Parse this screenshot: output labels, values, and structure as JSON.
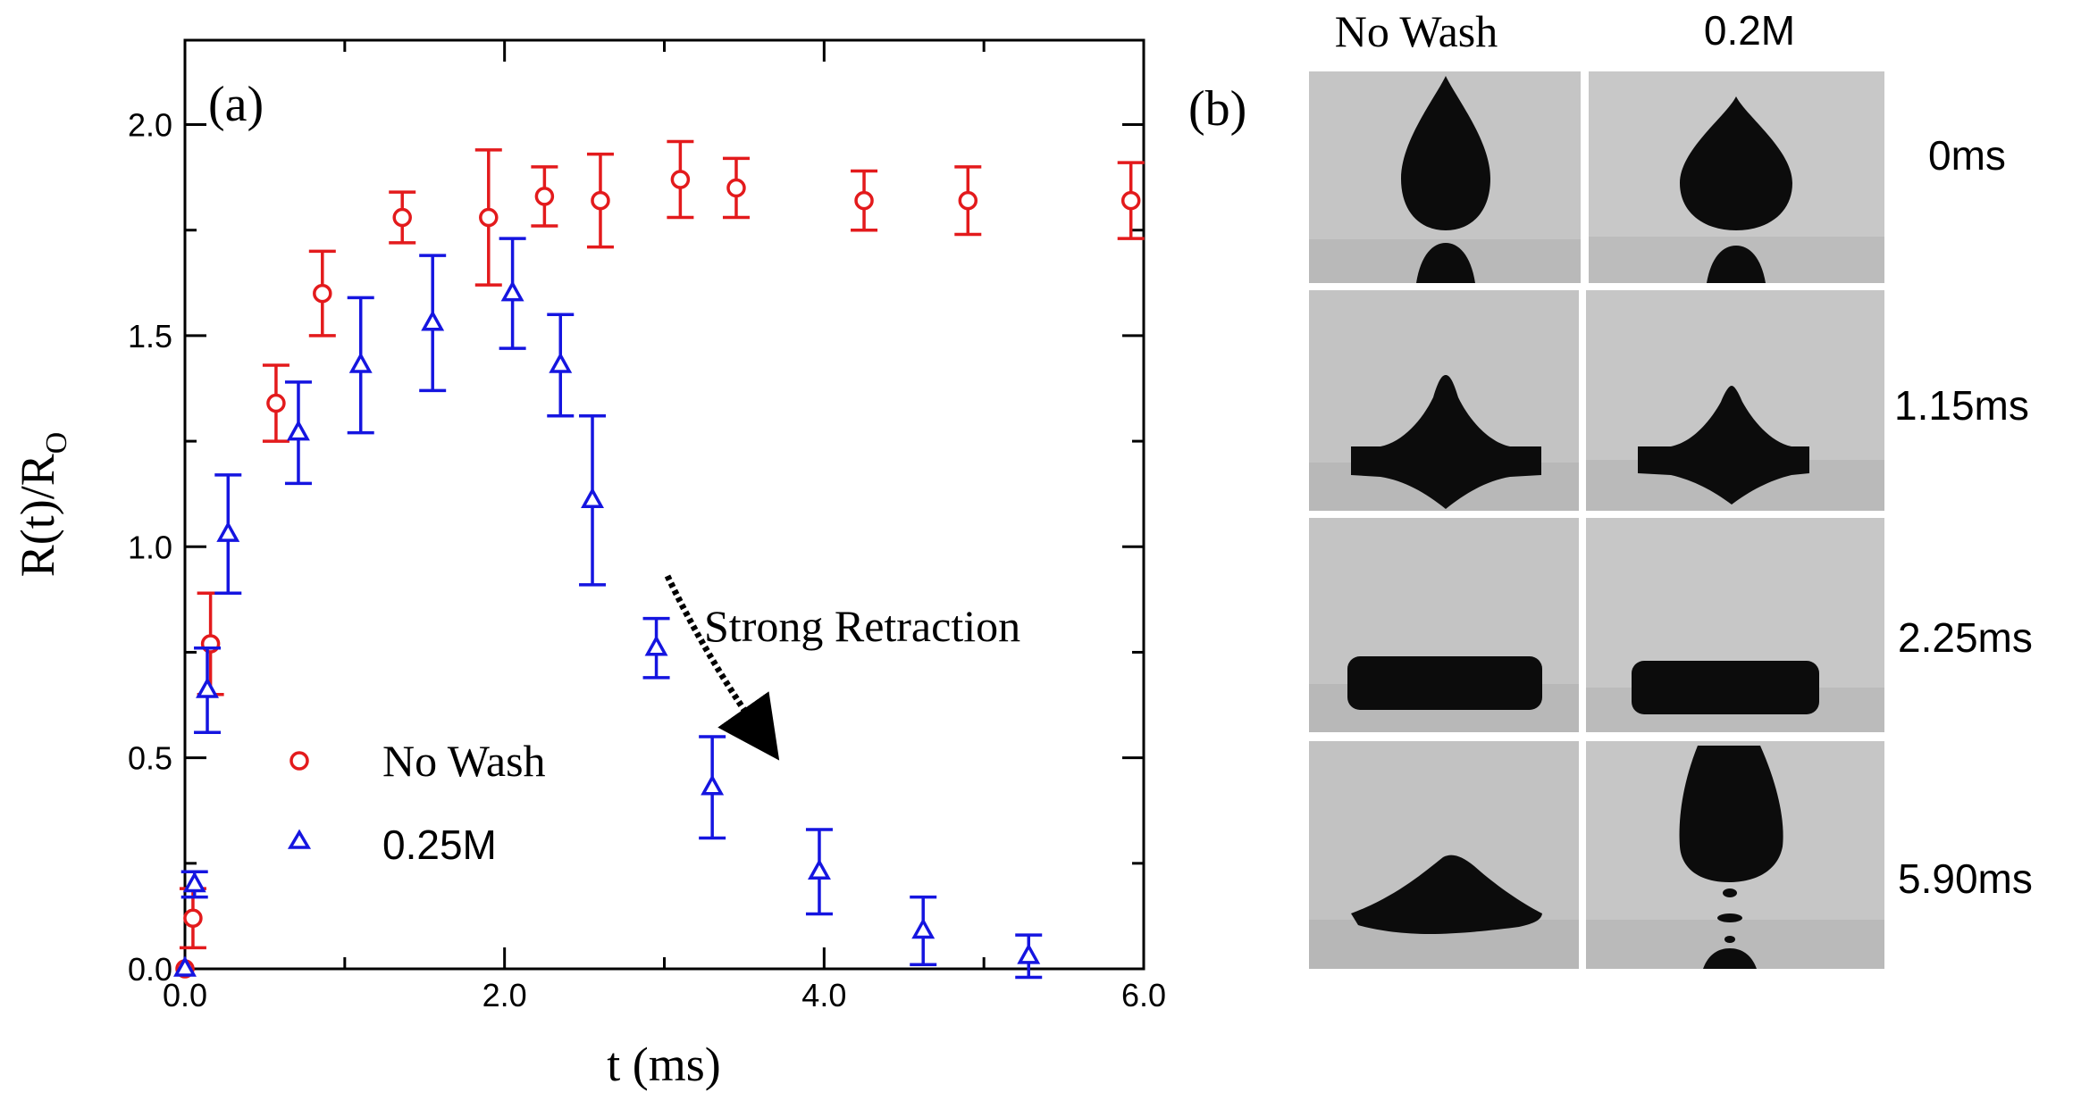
{
  "chart_data": [
    {
      "panel": "(a)",
      "type": "scatter",
      "xlabel": "t (ms)",
      "ylabel": "R(t)/R",
      "ylabel_sub": "O",
      "xlim": [
        0.0,
        6.0
      ],
      "ylim": [
        0.0,
        2.2
      ],
      "xticks": [
        0.0,
        2.0,
        4.0,
        6.0
      ],
      "xtick_labels": [
        "0.0",
        "2.0",
        "4.0",
        "6.0"
      ],
      "yticks": [
        0.0,
        0.5,
        1.0,
        1.5,
        2.0
      ],
      "ytick_labels": [
        "0.0",
        "0.5",
        "1.0",
        "1.5",
        "2.0"
      ],
      "grid": false,
      "legend_position": "lower-left",
      "annotation": "Strong Retraction",
      "series": [
        {
          "name": "No Wash",
          "marker": "circle",
          "color": "#e31a1c",
          "x": [
            0.0,
            0.05,
            0.16,
            0.57,
            0.86,
            1.36,
            1.9,
            2.25,
            2.6,
            3.1,
            3.45,
            4.25,
            4.9,
            5.92
          ],
          "y": [
            0.0,
            0.12,
            0.77,
            1.34,
            1.6,
            1.78,
            1.78,
            1.83,
            1.82,
            1.87,
            1.85,
            1.82,
            1.82,
            1.82
          ],
          "err": [
            0.0,
            0.07,
            0.12,
            0.09,
            0.1,
            0.06,
            0.16,
            0.07,
            0.11,
            0.09,
            0.07,
            0.07,
            0.08,
            0.09
          ]
        },
        {
          "name": "0.25M",
          "marker": "triangle",
          "color": "#1515e0",
          "x": [
            0.0,
            0.06,
            0.14,
            0.27,
            0.71,
            1.1,
            1.55,
            2.05,
            2.35,
            2.55,
            2.95,
            3.3,
            3.97,
            4.62,
            5.28
          ],
          "y": [
            0.0,
            0.2,
            0.66,
            1.03,
            1.27,
            1.43,
            1.53,
            1.6,
            1.43,
            1.11,
            0.76,
            0.43,
            0.23,
            0.09,
            0.03
          ],
          "err": [
            0.0,
            0.03,
            0.1,
            0.14,
            0.12,
            0.16,
            0.16,
            0.13,
            0.12,
            0.2,
            0.07,
            0.12,
            0.1,
            0.08,
            0.05
          ]
        }
      ]
    },
    {
      "panel": "(b)",
      "type": "image-grid",
      "column_labels": [
        "No Wash",
        "0.2M"
      ],
      "row_labels": [
        "0ms",
        "1.15ms",
        "2.25ms",
        "5.90ms"
      ]
    }
  ]
}
